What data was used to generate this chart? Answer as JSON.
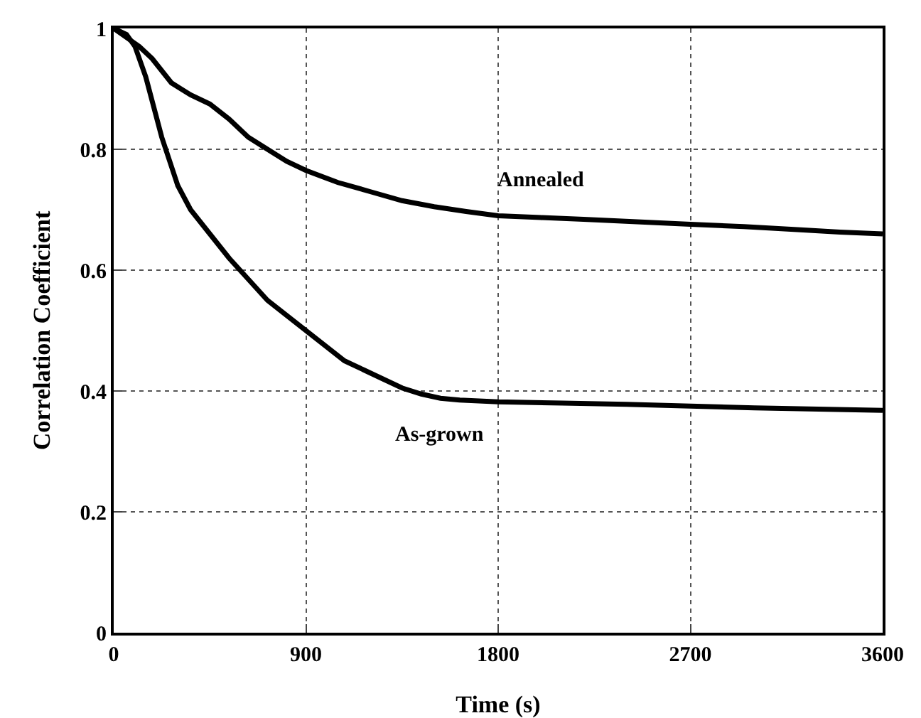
{
  "chart_data": {
    "type": "line",
    "xlabel": "Time (s)",
    "ylabel": "Correlation Coefficient",
    "xlim": [
      0,
      3600
    ],
    "xticks": [
      0,
      900,
      1800,
      2700,
      3600
    ],
    "ylim": [
      0,
      1
    ],
    "yticks": [
      0,
      0.2,
      0.4,
      0.6,
      0.8,
      1
    ],
    "grid": true,
    "marker": "none",
    "line_style": "solid",
    "series": [
      {
        "name": "Annealed",
        "color": "#000000",
        "x": [
          0,
          60,
          120,
          180,
          270,
          360,
          450,
          540,
          630,
          720,
          810,
          900,
          1050,
          1200,
          1350,
          1500,
          1650,
          1800,
          2000,
          2200,
          2450,
          2700,
          2950,
          3200,
          3400,
          3600
        ],
        "values": [
          1,
          0.985,
          0.97,
          0.95,
          0.91,
          0.89,
          0.875,
          0.85,
          0.82,
          0.8,
          0.78,
          0.765,
          0.745,
          0.73,
          0.715,
          0.705,
          0.697,
          0.69,
          0.687,
          0.684,
          0.68,
          0.676,
          0.672,
          0.667,
          0.663,
          0.66
        ]
      },
      {
        "name": "As-grown",
        "color": "#000000",
        "x": [
          0,
          60,
          100,
          150,
          225,
          300,
          360,
          450,
          540,
          630,
          720,
          810,
          900,
          990,
          1080,
          1170,
          1260,
          1350,
          1440,
          1530,
          1620,
          1800,
          2100,
          2400,
          2700,
          3000,
          3300,
          3600
        ],
        "values": [
          1,
          0.99,
          0.97,
          0.92,
          0.82,
          0.74,
          0.7,
          0.66,
          0.62,
          0.585,
          0.55,
          0.525,
          0.5,
          0.475,
          0.45,
          0.435,
          0.42,
          0.405,
          0.395,
          0.388,
          0.385,
          0.382,
          0.38,
          0.378,
          0.375,
          0.372,
          0.37,
          0.368
        ]
      }
    ]
  }
}
